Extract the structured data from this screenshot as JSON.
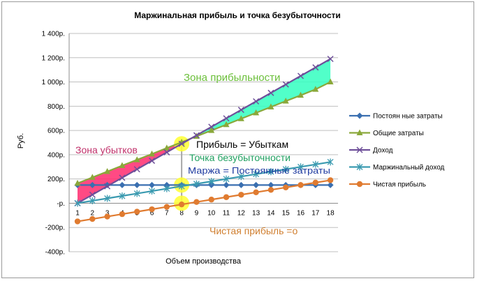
{
  "chart_data": {
    "type": "line",
    "title": "Маржинальная прибыль и точка безубыточности",
    "xlabel": "Объем производства",
    "ylabel": "Руб.",
    "ylim": [
      -400,
      1400
    ],
    "ystep": 200,
    "ytick_labels": [
      "-400р.",
      "-200р.",
      "-р.",
      "200р.",
      "400р.",
      "600р.",
      "800р.",
      "1 000р.",
      "1 200р.",
      "1 400р."
    ],
    "x": [
      1,
      2,
      3,
      4,
      5,
      6,
      7,
      8,
      9,
      10,
      11,
      12,
      13,
      14,
      15,
      16,
      17,
      18
    ],
    "series": [
      {
        "name": "Постоян ные затраты",
        "color": "#3a6fb0",
        "marker": "diamond",
        "values": [
          150,
          150,
          150,
          150,
          150,
          150,
          150,
          150,
          150,
          150,
          150,
          150,
          150,
          150,
          150,
          150,
          150,
          150
        ]
      },
      {
        "name": "Общие затраты",
        "color": "#8aa83a",
        "marker": "triangle",
        "values": [
          164,
          213,
          261,
          310,
          358,
          406,
          455,
          503,
          552,
          600,
          648,
          697,
          745,
          794,
          842,
          890,
          939,
          1000
        ]
      },
      {
        "name": "Доход",
        "color": "#6e4f99",
        "marker": "x",
        "values": [
          0,
          70,
          140,
          210,
          280,
          350,
          420,
          490,
          560,
          630,
          700,
          770,
          840,
          910,
          980,
          1050,
          1120,
          1190
        ]
      },
      {
        "name": "Маржинальный доход",
        "color": "#3a9ab0",
        "marker": "star",
        "values": [
          0,
          20,
          40,
          60,
          80,
          100,
          120,
          140,
          160,
          180,
          200,
          220,
          240,
          260,
          280,
          300,
          320,
          340
        ]
      },
      {
        "name": "Чистая прибыль",
        "color": "#e07b30",
        "marker": "circle",
        "values": [
          -150,
          -130,
          -110,
          -90,
          -70,
          -50,
          -30,
          -10,
          10,
          30,
          50,
          70,
          90,
          110,
          130,
          150,
          170,
          190
        ]
      }
    ],
    "legend_position": "right",
    "annotations": {
      "profit_zone": "Зона прибыльности",
      "loss_zone": "Зона убытков",
      "profit_eq_loss": "Прибыль = Убыткам",
      "breakeven": "Точка безубыточности",
      "margin_eq_fixed": "Маржа = Постоянные затраты",
      "net_profit_zero": "Чистая прибыль =о"
    },
    "breakeven_x": 8,
    "colors": {
      "profit_fill": "#33ffc0",
      "loss_fill": "#ff2a6e",
      "highlight": "#ffff33",
      "profit_zone_text": "#6bbf3a",
      "loss_zone_text": "#c0306a",
      "breakeven_text": "#20a060",
      "margin_text": "#1f3ba0",
      "net_zero_text": "#d07f30",
      "grid": "#bfbfbf"
    }
  }
}
